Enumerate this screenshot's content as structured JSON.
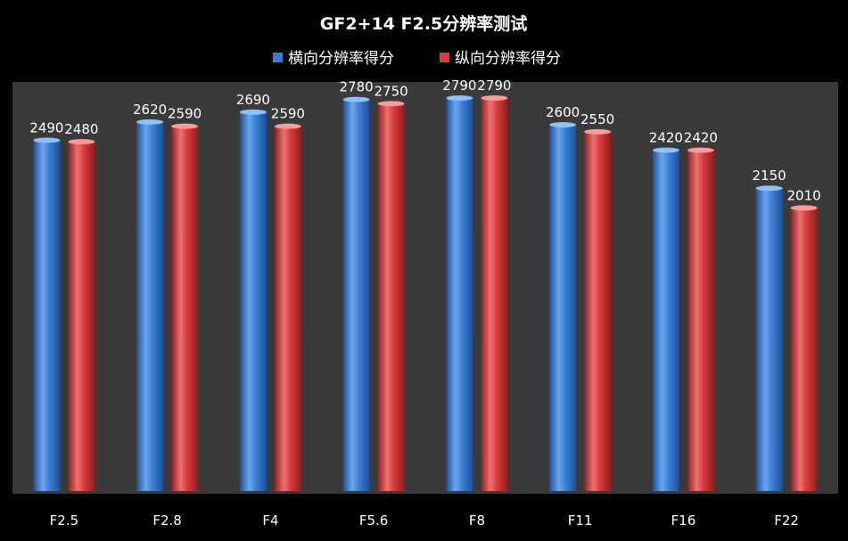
{
  "chart_data": {
    "type": "bar",
    "title": "GF2+14 F2.5分辨率测试",
    "categories": [
      "F2.5",
      "F2.8",
      "F4",
      "F5.6",
      "F8",
      "F11",
      "F16",
      "F22"
    ],
    "series": [
      {
        "name": "横向分辨率得分",
        "color": "#3a7fd5",
        "values": [
          2490,
          2620,
          2690,
          2780,
          2790,
          2600,
          2420,
          2150
        ]
      },
      {
        "name": "纵向分辨率得分",
        "color": "#d93a3a",
        "values": [
          2480,
          2590,
          2590,
          2750,
          2790,
          2550,
          2420,
          2010
        ]
      }
    ],
    "ylim": [
      0,
      2900
    ],
    "grid": false,
    "legend_position": "top",
    "background_color": "#000000",
    "plot_area_color": "#3a3a3a"
  }
}
